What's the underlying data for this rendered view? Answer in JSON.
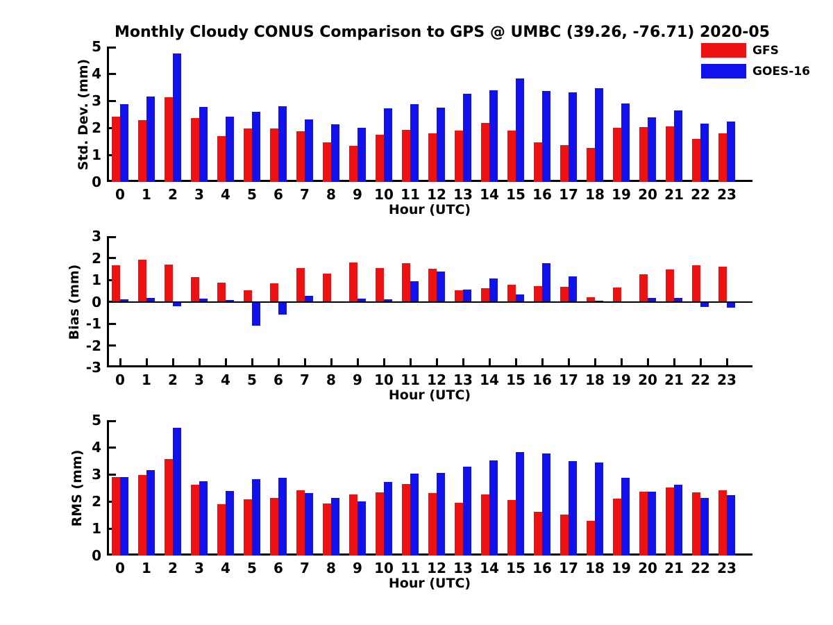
{
  "title": "Monthly Cloudy CONUS Comparison to GPS @ UMBC (39.26, -76.71) 2020-05",
  "colors": {
    "gfs": "#ee1111",
    "goes16": "#1111ee",
    "axis": "#000000"
  },
  "legend": {
    "items": [
      {
        "label": "GFS",
        "color": "#ee1111"
      },
      {
        "label": "GOES-16",
        "color": "#1111ee"
      }
    ]
  },
  "chart_data": [
    {
      "type": "bar",
      "panel": "std-dev",
      "ylabel": "Std. Dev. (mm)",
      "xlabel": "Hour (UTC)",
      "categories": [
        "0",
        "1",
        "2",
        "3",
        "4",
        "5",
        "6",
        "7",
        "8",
        "9",
        "10",
        "11",
        "12",
        "13",
        "14",
        "15",
        "16",
        "17",
        "18",
        "19",
        "20",
        "21",
        "22",
        "23"
      ],
      "ylim": [
        0,
        5
      ],
      "yticks": [
        0,
        1,
        2,
        3,
        4,
        5
      ],
      "grid": false,
      "series": [
        {
          "name": "GFS",
          "color": "#ee1111",
          "values": [
            2.4,
            2.27,
            3.13,
            2.37,
            1.7,
            1.98,
            1.97,
            1.87,
            1.46,
            1.33,
            1.74,
            1.92,
            1.8,
            1.9,
            2.17,
            1.9,
            1.45,
            1.35,
            1.25,
            2.0,
            2.03,
            2.06,
            1.58,
            1.79
          ]
        },
        {
          "name": "GOES-16",
          "color": "#1111ee",
          "values": [
            2.88,
            3.16,
            4.74,
            2.76,
            2.4,
            2.6,
            2.8,
            2.31,
            2.12,
            1.99,
            2.71,
            2.88,
            2.74,
            3.25,
            3.38,
            3.83,
            3.36,
            3.3,
            3.46,
            2.91,
            2.38,
            2.63,
            2.15,
            2.22
          ]
        }
      ]
    },
    {
      "type": "bar",
      "panel": "bias",
      "ylabel": "Bias (mm)",
      "xlabel": "Hour (UTC)",
      "categories": [
        "0",
        "1",
        "2",
        "3",
        "4",
        "5",
        "6",
        "7",
        "8",
        "9",
        "10",
        "11",
        "12",
        "13",
        "14",
        "15",
        "16",
        "17",
        "18",
        "19",
        "20",
        "21",
        "22",
        "23"
      ],
      "ylim": [
        -3,
        3
      ],
      "yticks": [
        3,
        2,
        1,
        0,
        -1,
        -2,
        -3
      ],
      "grid": false,
      "series": [
        {
          "name": "GFS",
          "color": "#ee1111",
          "values": [
            1.67,
            1.93,
            1.7,
            1.13,
            0.88,
            0.53,
            0.85,
            1.55,
            1.27,
            1.8,
            1.55,
            1.76,
            1.51,
            0.52,
            0.62,
            0.77,
            0.73,
            0.67,
            0.21,
            0.66,
            1.24,
            1.47,
            1.68,
            1.61
          ]
        },
        {
          "name": "GOES-16",
          "color": "#1111ee",
          "values": [
            0.1,
            0.18,
            -0.2,
            0.15,
            0.07,
            -1.08,
            -0.6,
            0.28,
            0.03,
            0.15,
            0.12,
            0.95,
            1.38,
            0.57,
            1.07,
            0.33,
            1.75,
            1.15,
            0.06,
            0.02,
            0.16,
            0.16,
            -0.23,
            -0.27
          ]
        }
      ]
    },
    {
      "type": "bar",
      "panel": "rms",
      "ylabel": "RMS (mm)",
      "xlabel": "Hour (UTC)",
      "categories": [
        "0",
        "1",
        "2",
        "3",
        "4",
        "5",
        "6",
        "7",
        "8",
        "9",
        "10",
        "11",
        "12",
        "13",
        "14",
        "15",
        "16",
        "17",
        "18",
        "19",
        "20",
        "21",
        "22",
        "23"
      ],
      "ylim": [
        0,
        5
      ],
      "yticks": [
        0,
        1,
        2,
        3,
        4,
        5
      ],
      "grid": false,
      "series": [
        {
          "name": "GFS",
          "color": "#ee1111",
          "values": [
            2.89,
            2.97,
            3.57,
            2.62,
            1.91,
            2.08,
            2.14,
            2.41,
            1.92,
            2.25,
            2.33,
            2.63,
            2.32,
            1.95,
            2.26,
            2.04,
            1.62,
            1.51,
            1.28,
            2.09,
            2.35,
            2.52,
            2.33,
            2.4
          ]
        },
        {
          "name": "GOES-16",
          "color": "#1111ee",
          "values": [
            2.89,
            3.15,
            4.72,
            2.74,
            2.39,
            2.82,
            2.88,
            2.31,
            2.14,
            2.0,
            2.71,
            3.02,
            3.05,
            3.28,
            3.51,
            3.82,
            3.78,
            3.48,
            3.43,
            2.87,
            2.37,
            2.62,
            2.14,
            2.23
          ]
        }
      ]
    }
  ]
}
